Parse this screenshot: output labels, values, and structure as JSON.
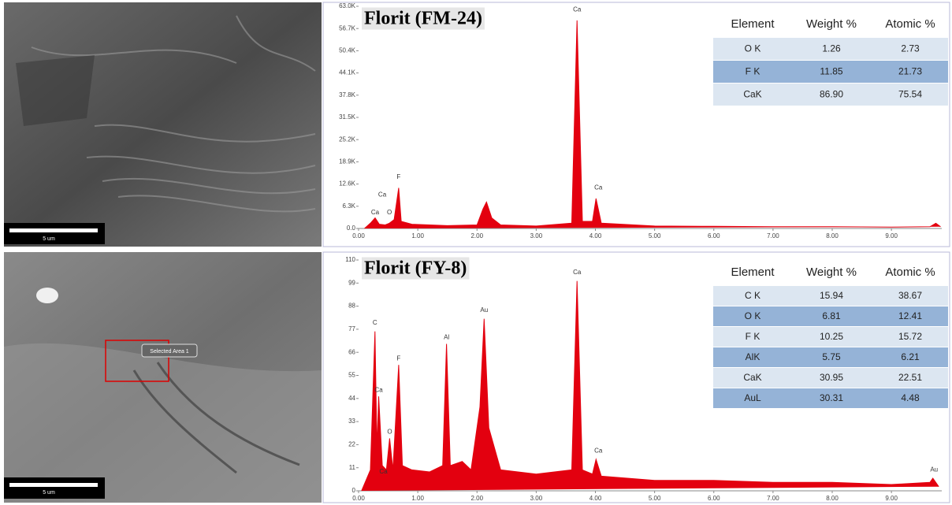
{
  "images": [
    {
      "scale_label": "5 um"
    },
    {
      "scale_label": "5 um",
      "selection_label": "Selected Area 1"
    }
  ],
  "chart_data": [
    {
      "type": "line",
      "title": "Florit (FM-24)",
      "color": "#e3000f",
      "xlim": [
        0,
        9.85
      ],
      "ylim": [
        0,
        63000
      ],
      "xticks": [
        {
          "value": 0,
          "label": "0.00"
        },
        {
          "value": 1,
          "label": "1.00"
        },
        {
          "value": 2,
          "label": "2.00"
        },
        {
          "value": 3,
          "label": "3.00"
        },
        {
          "value": 4,
          "label": "4.00"
        },
        {
          "value": 5,
          "label": "5.00"
        },
        {
          "value": 6,
          "label": "6.00"
        },
        {
          "value": 7,
          "label": "7.00"
        },
        {
          "value": 8,
          "label": "8.00"
        },
        {
          "value": 9,
          "label": "9.00"
        }
      ],
      "yticks": [
        {
          "value": 0,
          "label": "0.0"
        },
        {
          "value": 6300,
          "label": "6.3K"
        },
        {
          "value": 12600,
          "label": "12.6K"
        },
        {
          "value": 18900,
          "label": "18.9K"
        },
        {
          "value": 25200,
          "label": "25.2K"
        },
        {
          "value": 31500,
          "label": "31.5K"
        },
        {
          "value": 37800,
          "label": "37.8K"
        },
        {
          "value": 44100,
          "label": "44.1K"
        },
        {
          "value": 50400,
          "label": "50.4K"
        },
        {
          "value": 56700,
          "label": "56.7K"
        },
        {
          "value": 63000,
          "label": "63.0K"
        }
      ],
      "x": [
        0.1,
        0.2,
        0.28,
        0.35,
        0.45,
        0.52,
        0.6,
        0.677,
        0.72,
        0.9,
        1.5,
        2.0,
        2.1,
        2.16,
        2.25,
        2.4,
        3.0,
        3.6,
        3.69,
        3.78,
        3.95,
        4.01,
        4.1,
        5.0,
        6.0,
        7.0,
        8.0,
        9.0,
        9.65,
        9.75,
        9.83
      ],
      "values": [
        0,
        1500,
        3000,
        1200,
        1000,
        1500,
        2500,
        11500,
        2000,
        1200,
        800,
        1000,
        5500,
        7500,
        3000,
        1000,
        700,
        1500,
        59000,
        2000,
        2000,
        8500,
        1500,
        700,
        600,
        500,
        500,
        400,
        500,
        1500,
        500
      ],
      "annotations": [
        {
          "text": "Ca",
          "x": 0.28,
          "y": 4500
        },
        {
          "text": "O",
          "x": 0.52,
          "y": 4500
        },
        {
          "text": "Ca",
          "x": 0.4,
          "y": 9500
        },
        {
          "text": "F",
          "x": 0.677,
          "y": 14500
        },
        {
          "text": "Ca",
          "x": 3.69,
          "y": 62000
        },
        {
          "text": "Ca",
          "x": 4.05,
          "y": 11500
        }
      ],
      "table": {
        "columns": [
          "Element",
          "Weight %",
          "Atomic %"
        ],
        "rows": [
          [
            "O K",
            "1.26",
            "2.73"
          ],
          [
            "F K",
            "11.85",
            "21.73"
          ],
          [
            "CaK",
            "86.90",
            "75.54"
          ]
        ]
      }
    },
    {
      "type": "line",
      "title": "Florit (FY-8)",
      "color": "#e3000f",
      "xlim": [
        0,
        9.85
      ],
      "ylim": [
        0,
        110
      ],
      "xticks": [
        {
          "value": 0,
          "label": "0.00"
        },
        {
          "value": 1,
          "label": "1.00"
        },
        {
          "value": 2,
          "label": "2.00"
        },
        {
          "value": 3,
          "label": "3.00"
        },
        {
          "value": 4,
          "label": "4.00"
        },
        {
          "value": 5,
          "label": "5.00"
        },
        {
          "value": 6,
          "label": "6.00"
        },
        {
          "value": 7,
          "label": "7.00"
        },
        {
          "value": 8,
          "label": "8.00"
        },
        {
          "value": 9,
          "label": "9.00"
        }
      ],
      "yticks": [
        0,
        11,
        22,
        33,
        44,
        55,
        66,
        77,
        88,
        99,
        110
      ],
      "x": [
        0.05,
        0.2,
        0.277,
        0.31,
        0.34,
        0.4,
        0.47,
        0.525,
        0.58,
        0.677,
        0.74,
        0.9,
        1.2,
        1.42,
        1.486,
        1.55,
        1.75,
        1.9,
        2.05,
        2.12,
        2.2,
        2.4,
        3.0,
        3.6,
        3.69,
        3.78,
        3.95,
        4.01,
        4.1,
        5.0,
        6.0,
        7.0,
        8.0,
        9.0,
        9.65,
        9.7,
        9.8
      ],
      "values": [
        0,
        10,
        76,
        20,
        45,
        12,
        10,
        25,
        10,
        60,
        12,
        10,
        9,
        12,
        70,
        12,
        14,
        10,
        40,
        82,
        30,
        10,
        8,
        10,
        100,
        10,
        8,
        15,
        7,
        5,
        5,
        4,
        4,
        3,
        4,
        6,
        2
      ],
      "annotations": [
        {
          "text": "C",
          "x": 0.277,
          "y": 80
        },
        {
          "text": "Ca",
          "x": 0.34,
          "y": 48
        },
        {
          "text": "O",
          "x": 0.525,
          "y": 28
        },
        {
          "text": "Ca",
          "x": 0.42,
          "y": 9
        },
        {
          "text": "F",
          "x": 0.677,
          "y": 63
        },
        {
          "text": "Al",
          "x": 1.486,
          "y": 73
        },
        {
          "text": "Au",
          "x": 2.12,
          "y": 86
        },
        {
          "text": "Ca",
          "x": 3.69,
          "y": 104
        },
        {
          "text": "Ca",
          "x": 4.05,
          "y": 19
        },
        {
          "text": "Au",
          "x": 9.72,
          "y": 10
        }
      ],
      "table": {
        "columns": [
          "Element",
          "Weight %",
          "Atomic %"
        ],
        "rows": [
          [
            "C K",
            "15.94",
            "38.67"
          ],
          [
            "O K",
            "6.81",
            "12.41"
          ],
          [
            "F K",
            "10.25",
            "15.72"
          ],
          [
            "AlK",
            "5.75",
            "6.21"
          ],
          [
            "CaK",
            "30.95",
            "22.51"
          ],
          [
            "AuL",
            "30.31",
            "4.48"
          ]
        ]
      }
    }
  ]
}
